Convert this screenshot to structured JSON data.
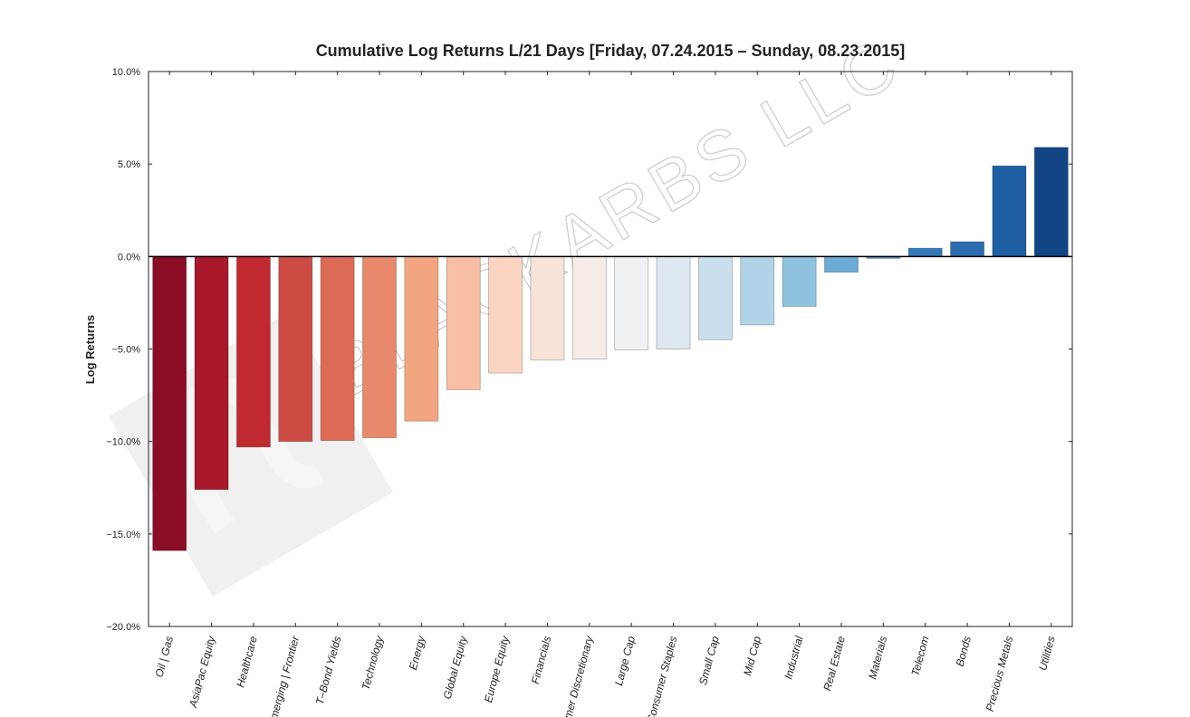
{
  "chart_data": {
    "type": "bar",
    "title": "Cumulative Log Returns L/21 Days  [Friday, 07.24.2015 – Sunday, 08.23.2015]",
    "xlabel": "",
    "ylabel": "Log Returns",
    "ylim": [
      -20,
      10
    ],
    "yticks": [
      10,
      5,
      0,
      -5,
      -10,
      -15,
      -20
    ],
    "ytick_labels": [
      "10.0%",
      "5.0%",
      "0.0%",
      "−5.0%",
      "−10.0%",
      "−15.0%",
      "−20.0%"
    ],
    "grid": false,
    "legend": "none",
    "categories": [
      "Oil | Gas",
      "AsiaPac Equity",
      "Healthcare",
      "Emerging | Frontier",
      "T–Bond Yields",
      "Technology",
      "Energy",
      "Global Equity",
      "Europe Equity",
      "Financials",
      "Consumer Discretionary",
      "Large Cap",
      "Consumer Staples",
      "Small Cap",
      "Mid Cap",
      "Industrial",
      "Real Estate",
      "Materials",
      "Telecom",
      "Bonds",
      "Precious Metals",
      "Utilities"
    ],
    "values": [
      -15.9,
      -12.6,
      -10.3,
      -10.0,
      -9.95,
      -9.8,
      -8.9,
      -7.2,
      -6.3,
      -5.6,
      -5.55,
      -5.05,
      -5.0,
      -4.5,
      -3.7,
      -2.7,
      -0.85,
      -0.1,
      0.45,
      0.8,
      4.9,
      5.9
    ],
    "colors": [
      "#8a0c25",
      "#a8172a",
      "#c0292f",
      "#cc4b42",
      "#dd6a55",
      "#e8896b",
      "#f2a57f",
      "#f8bea4",
      "#fbd5c2",
      "#f8e3d9",
      "#f5ece8",
      "#eef1f4",
      "#dde8f1",
      "#c9dfee",
      "#b1d3e7",
      "#8fc2de",
      "#6aaad5",
      "#4a90c6",
      "#3478ba",
      "#2c6cae",
      "#1f5fa3",
      "#114585"
    ]
  },
  "watermark": {
    "text": "BLACKARBS LLC"
  }
}
